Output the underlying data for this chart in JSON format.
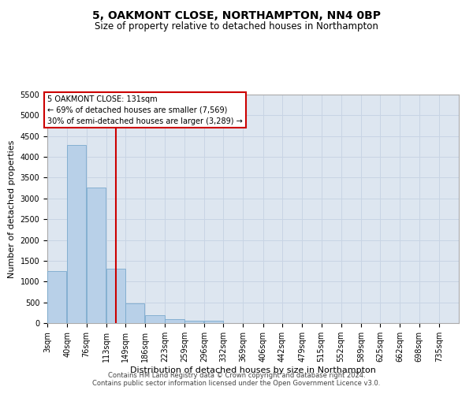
{
  "title": "5, OAKMONT CLOSE, NORTHAMPTON, NN4 0BP",
  "subtitle": "Size of property relative to detached houses in Northampton",
  "xlabel": "Distribution of detached houses by size in Northampton",
  "ylabel": "Number of detached properties",
  "footnote1": "Contains HM Land Registry data © Crown copyright and database right 2024.",
  "footnote2": "Contains public sector information licensed under the Open Government Licence v3.0.",
  "annotation_line1": "5 OAKMONT CLOSE: 131sqm",
  "annotation_line2": "← 69% of detached houses are smaller (7,569)",
  "annotation_line3": "30% of semi-detached houses are larger (3,289) →",
  "bar_color": "#b8d0e8",
  "bar_edge_color": "#7aaace",
  "vline_color": "#cc0000",
  "grid_color": "#c8d4e4",
  "plot_bg_color": "#dde6f0",
  "categories": [
    "3sqm",
    "40sqm",
    "76sqm",
    "113sqm",
    "149sqm",
    "186sqm",
    "223sqm",
    "259sqm",
    "296sqm",
    "332sqm",
    "369sqm",
    "406sqm",
    "442sqm",
    "479sqm",
    "515sqm",
    "552sqm",
    "589sqm",
    "625sqm",
    "662sqm",
    "698sqm",
    "735sqm"
  ],
  "bin_left_edges": [
    3,
    40,
    76,
    113,
    149,
    186,
    223,
    259,
    296,
    332,
    369,
    406,
    442,
    479,
    515,
    552,
    589,
    625,
    662,
    698,
    735
  ],
  "bin_width": 37,
  "values": [
    1250,
    4280,
    3270,
    1300,
    470,
    195,
    100,
    55,
    50,
    0,
    0,
    0,
    0,
    0,
    0,
    0,
    0,
    0,
    0,
    0
  ],
  "vline_x": 131,
  "ylim_max": 5500,
  "yticks": [
    0,
    500,
    1000,
    1500,
    2000,
    2500,
    3000,
    3500,
    4000,
    4500,
    5000,
    5500
  ],
  "title_fontsize": 10,
  "subtitle_fontsize": 8.5,
  "xlabel_fontsize": 8,
  "ylabel_fontsize": 8,
  "tick_fontsize": 7,
  "footnote_fontsize": 6
}
